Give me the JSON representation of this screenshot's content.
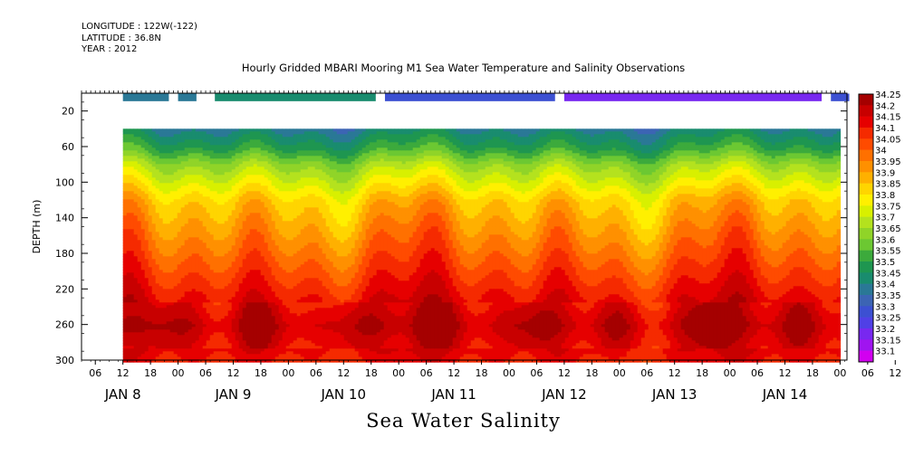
{
  "header": {
    "longitude": "LONGITUDE : 122W(-122)",
    "latitude": "LATITUDE : 36.8N",
    "year": "YEAR : 2012"
  },
  "title": "Hourly Gridded MBARI Mooring M1 Sea Water Temperature and Salinity Observations",
  "bottom_title": "Sea Water Salinity",
  "chart_data": {
    "type": "heatmap",
    "title": "Hourly Gridded MBARI Mooring M1 Sea Water Temperature and Salinity Observations",
    "xlabel": "",
    "ylabel": "DEPTH (m)",
    "ylim": [
      300,
      0
    ],
    "yticks": [
      20,
      60,
      100,
      140,
      180,
      220,
      260,
      300
    ],
    "hour_ticks": [
      "06",
      "12",
      "18",
      "00",
      "06",
      "12",
      "18",
      "00",
      "06",
      "12",
      "18",
      "00",
      "06",
      "12",
      "18",
      "00",
      "06",
      "12",
      "18",
      "00",
      "06",
      "12",
      "18",
      "00",
      "06",
      "12",
      "18",
      "00",
      "06",
      "12",
      "18",
      "00"
    ],
    "day_labels": [
      "JAN  8",
      "JAN  9",
      "JAN 10",
      "JAN 11",
      "JAN 12",
      "JAN 13",
      "JAN 14"
    ],
    "colorbar": {
      "levels": [
        "34.25",
        "34.2",
        "34.15",
        "34.1",
        "34.05",
        "34",
        "33.95",
        "33.9",
        "33.85",
        "33.8",
        "33.75",
        "33.7",
        "33.65",
        "33.6",
        "33.55",
        "33.5",
        "33.45",
        "33.4",
        "33.35",
        "33.3",
        "33.25",
        "33.2",
        "33.15",
        "33.1"
      ],
      "colors": [
        "#a50000",
        "#c80000",
        "#e60000",
        "#f52a00",
        "#ff4b00",
        "#ff7000",
        "#ff9000",
        "#ffb000",
        "#ffd500",
        "#fff000",
        "#d8f000",
        "#b4e21e",
        "#90d428",
        "#6cc832",
        "#3caa3c",
        "#1e9650",
        "#198c6e",
        "#2a7896",
        "#3c64b4",
        "#3c50d2",
        "#5040e6",
        "#7828f0",
        "#a014f0",
        "#d200f0"
      ]
    },
    "surface_salinity_bar": [
      {
        "start": "JAN 8 12:00",
        "end": "JAN 8 22:00",
        "salinity": 33.4
      },
      {
        "start": "JAN 9 00:00",
        "end": "JAN 9 04:00",
        "salinity": 33.4
      },
      {
        "start": "JAN 9 08:00",
        "end": "JAN 10 19:00",
        "salinity": 33.45
      },
      {
        "start": "JAN 10 21:00",
        "end": "JAN 12 10:00",
        "salinity": 33.3
      },
      {
        "start": "JAN 12 12:00",
        "end": "JAN 14 20:00",
        "salinity": 33.2
      },
      {
        "start": "JAN 14 22:00",
        "end": "JAN 15 02:00",
        "salinity": 33.3
      }
    ],
    "depths_m": [
      40,
      60,
      80,
      100,
      120,
      140,
      160,
      180,
      200,
      220,
      240,
      260,
      280,
      300
    ],
    "times": [
      "JAN 8 12:00",
      "JAN 9 00:00",
      "JAN 9 12:00",
      "JAN 10 00:00",
      "JAN 10 12:00",
      "JAN 11 00:00",
      "JAN 11 12:00",
      "JAN 12 00:00",
      "JAN 12 12:00",
      "JAN 13 00:00",
      "JAN 13 12:00",
      "JAN 14 00:00",
      "JAN 14 12:00",
      "JAN 15 00:00"
    ],
    "salinity_profile_typical": [
      33.45,
      33.55,
      33.7,
      33.8,
      33.9,
      33.95,
      34.0,
      34.05,
      34.1,
      34.15,
      34.2,
      34.25,
      34.2,
      34.15
    ]
  }
}
